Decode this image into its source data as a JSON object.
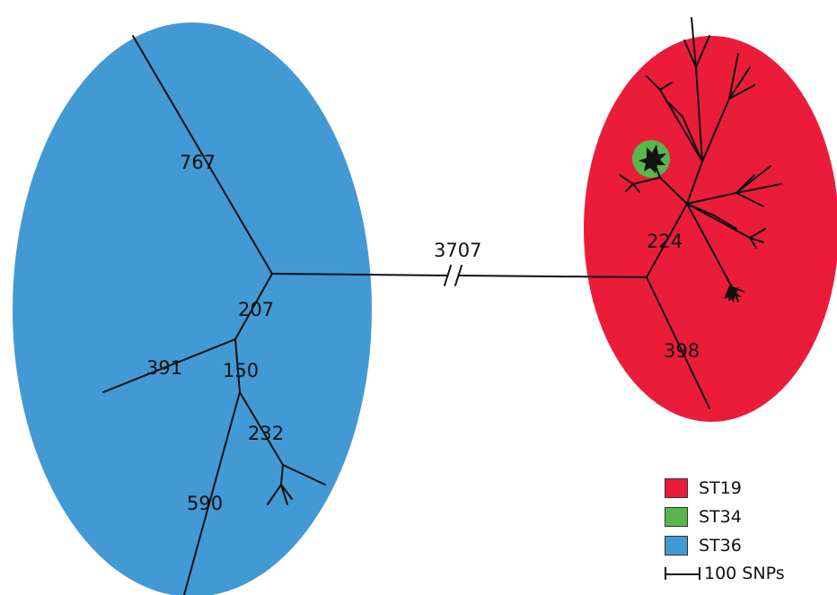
{
  "colors": {
    "st36": "#4399d3",
    "st19": "#eb1c3a",
    "st34": "#58b64a",
    "branch": "#111111"
  },
  "branch_labels": {
    "b3707": "3707",
    "b767": "767",
    "b207": "207",
    "b391": "391",
    "b150": "150",
    "b232": "232",
    "b590": "590",
    "b224": "224",
    "b398": "398"
  },
  "legend": {
    "items": [
      {
        "label": "ST19",
        "color": "#eb1c3a"
      },
      {
        "label": "ST34",
        "color": "#58b64a"
      },
      {
        "label": "ST36",
        "color": "#4399d3"
      }
    ],
    "scale_label": "100 SNPs"
  }
}
